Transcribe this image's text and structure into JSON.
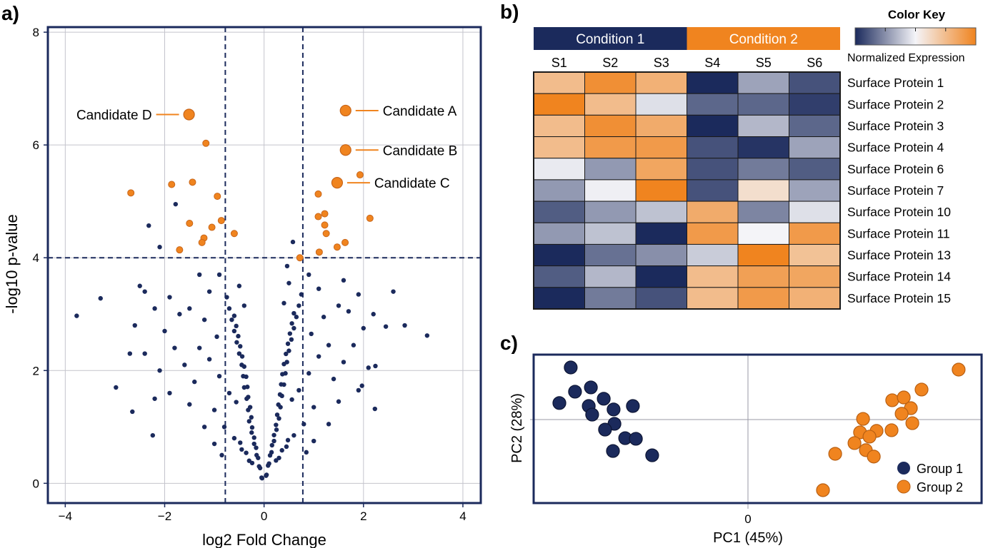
{
  "colors": {
    "navy": "#1b2a5c",
    "orange": "#f0841f",
    "white": "#f4f4f8"
  },
  "chart_data": [
    {
      "panel": "a)",
      "type": "scatter",
      "xlabel": "log2 Fold Change",
      "ylabel": "-log10 p-value",
      "xlim": [
        -4.35,
        4.36
      ],
      "ylim": [
        -0.35,
        8.09
      ],
      "xticks": [
        -4,
        -2,
        0,
        2,
        4
      ],
      "yticks": [
        0,
        2,
        4,
        6,
        8
      ],
      "grid": true,
      "thresholds": {
        "fold_change": [
          -0.78,
          0.78
        ],
        "p_value": 4
      },
      "significant_points": [
        [
          -2.68,
          5.15
        ],
        [
          -1.86,
          5.3
        ],
        [
          -1.44,
          5.34
        ],
        [
          -1.17,
          6.03
        ],
        [
          -0.94,
          5.09
        ],
        [
          -1.5,
          4.61
        ],
        [
          -1.05,
          4.54
        ],
        [
          -0.86,
          4.66
        ],
        [
          -0.6,
          4.43
        ],
        [
          -1.21,
          4.35
        ],
        [
          -1.25,
          4.27
        ],
        [
          -1.7,
          4.14
        ],
        [
          1.09,
          5.13
        ],
        [
          1.09,
          4.73
        ],
        [
          1.22,
          4.78
        ],
        [
          1.22,
          4.58
        ],
        [
          1.25,
          4.43
        ],
        [
          1.63,
          4.27
        ],
        [
          1.47,
          4.19
        ],
        [
          1.11,
          4.1
        ],
        [
          0.72,
          4.0
        ],
        [
          2.13,
          4.7
        ],
        [
          1.93,
          5.47
        ]
      ],
      "labeled_points": [
        {
          "label": "Candidate A",
          "x": 1.64,
          "y": 6.61,
          "side": "right"
        },
        {
          "label": "Candidate B",
          "x": 1.64,
          "y": 5.91,
          "side": "right"
        },
        {
          "label": "Candidate C",
          "x": 1.47,
          "y": 5.33,
          "side": "right"
        },
        {
          "label": "Candidate D",
          "x": -1.51,
          "y": 6.54,
          "side": "left"
        }
      ],
      "non_significant_points": [
        [
          -1.78,
          4.95
        ],
        [
          -2.32,
          4.57
        ],
        [
          -2.1,
          4.19
        ],
        [
          0.58,
          4.28
        ],
        [
          -3.77,
          2.97
        ],
        [
          -3.29,
          3.28
        ],
        [
          -2.98,
          1.7
        ],
        [
          -2.65,
          1.27
        ],
        [
          -2.24,
          0.85
        ],
        [
          3.28,
          2.62
        ],
        [
          2.45,
          2.78
        ],
        [
          2.83,
          2.8
        ],
        [
          2.24,
          2.08
        ],
        [
          2.23,
          1.32
        ],
        [
          1.97,
          1.73
        ],
        [
          -2.5,
          3.5
        ],
        [
          -2.2,
          1.5
        ],
        [
          -2.7,
          2.3
        ],
        [
          2.6,
          3.4
        ],
        [
          2.2,
          3.0
        ],
        [
          -0.05,
          0.1
        ],
        [
          -0.1,
          0.3
        ],
        [
          -0.15,
          0.5
        ],
        [
          -0.2,
          0.7
        ],
        [
          -0.25,
          0.9
        ],
        [
          -0.3,
          1.1
        ],
        [
          -0.32,
          1.3
        ],
        [
          -0.35,
          1.5
        ],
        [
          -0.4,
          1.7
        ],
        [
          -0.42,
          1.9
        ],
        [
          -0.45,
          2.1
        ],
        [
          -0.5,
          2.3
        ],
        [
          -0.55,
          2.5
        ],
        [
          -0.6,
          2.7
        ],
        [
          -0.65,
          2.9
        ],
        [
          -0.7,
          3.1
        ],
        [
          -0.75,
          3.3
        ],
        [
          -0.3,
          0.4
        ],
        [
          -0.45,
          0.6
        ],
        [
          -0.6,
          0.8
        ],
        [
          -0.8,
          1.0
        ],
        [
          -1.0,
          1.3
        ],
        [
          -0.7,
          1.6
        ],
        [
          -0.9,
          1.9
        ],
        [
          -1.1,
          2.2
        ],
        [
          -1.3,
          2.4
        ],
        [
          -0.95,
          2.6
        ],
        [
          -1.2,
          2.9
        ],
        [
          -1.5,
          3.1
        ],
        [
          -1.1,
          3.4
        ],
        [
          -0.5,
          3.5
        ],
        [
          -1.4,
          1.8
        ],
        [
          -1.6,
          2.1
        ],
        [
          -1.8,
          2.4
        ],
        [
          -2.0,
          2.7
        ],
        [
          -1.7,
          3.0
        ],
        [
          -1.9,
          3.3
        ],
        [
          -2.2,
          3.1
        ],
        [
          -2.4,
          3.4
        ],
        [
          -1.2,
          1.0
        ],
        [
          -1.5,
          1.4
        ],
        [
          -0.85,
          0.5
        ],
        [
          -1.0,
          0.7
        ],
        [
          -1.9,
          1.6
        ],
        [
          -2.1,
          2.0
        ],
        [
          -2.4,
          2.3
        ],
        [
          -2.6,
          2.8
        ],
        [
          -1.3,
          3.7
        ],
        [
          -0.9,
          3.7
        ],
        [
          0.05,
          0.15
        ],
        [
          0.1,
          0.35
        ],
        [
          0.15,
          0.55
        ],
        [
          0.2,
          0.75
        ],
        [
          0.25,
          0.95
        ],
        [
          0.3,
          1.15
        ],
        [
          0.33,
          1.35
        ],
        [
          0.36,
          1.55
        ],
        [
          0.4,
          1.75
        ],
        [
          0.43,
          1.95
        ],
        [
          0.46,
          2.15
        ],
        [
          0.5,
          2.35
        ],
        [
          0.55,
          2.55
        ],
        [
          0.6,
          2.75
        ],
        [
          0.65,
          2.95
        ],
        [
          0.7,
          3.15
        ],
        [
          0.75,
          3.35
        ],
        [
          0.3,
          0.45
        ],
        [
          0.45,
          0.65
        ],
        [
          0.6,
          0.85
        ],
        [
          0.8,
          1.05
        ],
        [
          1.0,
          1.35
        ],
        [
          0.7,
          1.65
        ],
        [
          0.9,
          1.95
        ],
        [
          1.1,
          2.25
        ],
        [
          1.3,
          2.45
        ],
        [
          0.95,
          2.65
        ],
        [
          1.2,
          2.95
        ],
        [
          1.5,
          3.15
        ],
        [
          1.1,
          3.45
        ],
        [
          0.5,
          3.55
        ],
        [
          1.4,
          1.85
        ],
        [
          1.6,
          2.15
        ],
        [
          1.8,
          2.45
        ],
        [
          2.0,
          2.75
        ],
        [
          1.7,
          3.05
        ],
        [
          1.9,
          3.35
        ],
        [
          1.3,
          1.05
        ],
        [
          1.5,
          1.45
        ],
        [
          0.85,
          0.55
        ],
        [
          1.0,
          0.75
        ],
        [
          1.9,
          1.65
        ],
        [
          2.1,
          2.05
        ],
        [
          1.6,
          3.6
        ],
        [
          0.9,
          3.7
        ]
      ]
    },
    {
      "panel": "b)",
      "type": "heatmap",
      "conditions": [
        {
          "label": "Condition 1",
          "samples": 3
        },
        {
          "label": "Condition 2",
          "samples": 3
        }
      ],
      "columns": [
        "S1",
        "S2",
        "S3",
        "S4",
        "S5",
        "S6"
      ],
      "rows": [
        "Surface Protein 1",
        "Surface Protein 2",
        "Surface Protein 3",
        "Surface Protein 4",
        "Surface Protein 6",
        "Surface Protein 7",
        "Surface Protein 10",
        "Surface Protein 11",
        "Surface Protein 13",
        "Surface Protein 14",
        "Surface Protein 15"
      ],
      "values": [
        [
          1.0,
          1.8,
          1.2,
          -2.0,
          -0.8,
          -1.6
        ],
        [
          2.0,
          1.0,
          -0.2,
          -1.4,
          -1.4,
          -1.8
        ],
        [
          1.0,
          1.8,
          1.3,
          -2.0,
          -0.6,
          -1.4
        ],
        [
          1.0,
          1.6,
          1.6,
          -1.6,
          -1.9,
          -0.8
        ],
        [
          -0.1,
          -0.9,
          1.4,
          -1.6,
          -1.2,
          -1.5
        ],
        [
          -0.9,
          -0.05,
          2.0,
          -1.6,
          0.4,
          -0.8
        ],
        [
          -1.5,
          -0.9,
          -0.5,
          1.3,
          -1.1,
          -0.2
        ],
        [
          -0.9,
          -0.5,
          -2.0,
          1.6,
          0.0,
          1.6
        ],
        [
          -2.0,
          -1.3,
          -1.0,
          -0.4,
          2.0,
          0.9
        ],
        [
          -1.5,
          -0.6,
          -2.0,
          1.0,
          1.5,
          1.4
        ],
        [
          -2.0,
          -1.2,
          -1.6,
          1.0,
          1.6,
          1.2
        ]
      ],
      "color_range": [
        -2,
        2
      ],
      "color_key": {
        "title": "Color Key",
        "label": "Normalized Expression"
      }
    },
    {
      "panel": "c)",
      "type": "scatter",
      "xlabel": "PC1 (45%)",
      "ylabel": "PC2 (28%)",
      "xticks": [
        0
      ],
      "xlim": [
        -10,
        10.9
      ],
      "ylim": [
        -3.9,
        3.03
      ],
      "legend": "bottom-right",
      "series": [
        {
          "name": "Group 1",
          "color": "#1b2a5c",
          "points": [
            [
              -8.27,
              2.43
            ],
            [
              -8.8,
              0.77
            ],
            [
              -8.07,
              1.3
            ],
            [
              -7.33,
              1.5
            ],
            [
              -6.73,
              0.97
            ],
            [
              -7.43,
              0.63
            ],
            [
              -6.27,
              0.47
            ],
            [
              -5.37,
              0.63
            ],
            [
              -7.27,
              0.23
            ],
            [
              -6.23,
              -0.2
            ],
            [
              -6.67,
              -0.47
            ],
            [
              -5.73,
              -0.87
            ],
            [
              -5.23,
              -0.9
            ],
            [
              -6.3,
              -1.47
            ],
            [
              -4.47,
              -1.67
            ]
          ]
        },
        {
          "name": "Group 2",
          "color": "#f0841f",
          "points": [
            [
              9.83,
              2.33
            ],
            [
              8.1,
              1.4
            ],
            [
              6.73,
              0.9
            ],
            [
              7.27,
              1.03
            ],
            [
              7.6,
              0.53
            ],
            [
              7.17,
              0.27
            ],
            [
              7.67,
              -0.17
            ],
            [
              5.37,
              0.03
            ],
            [
              6.7,
              -0.5
            ],
            [
              6.0,
              -0.53
            ],
            [
              5.23,
              -0.6
            ],
            [
              5.67,
              -0.8
            ],
            [
              4.97,
              -1.1
            ],
            [
              5.5,
              -1.43
            ],
            [
              5.87,
              -1.73
            ],
            [
              4.07,
              -1.6
            ],
            [
              3.5,
              -3.3
            ]
          ]
        }
      ]
    }
  ]
}
